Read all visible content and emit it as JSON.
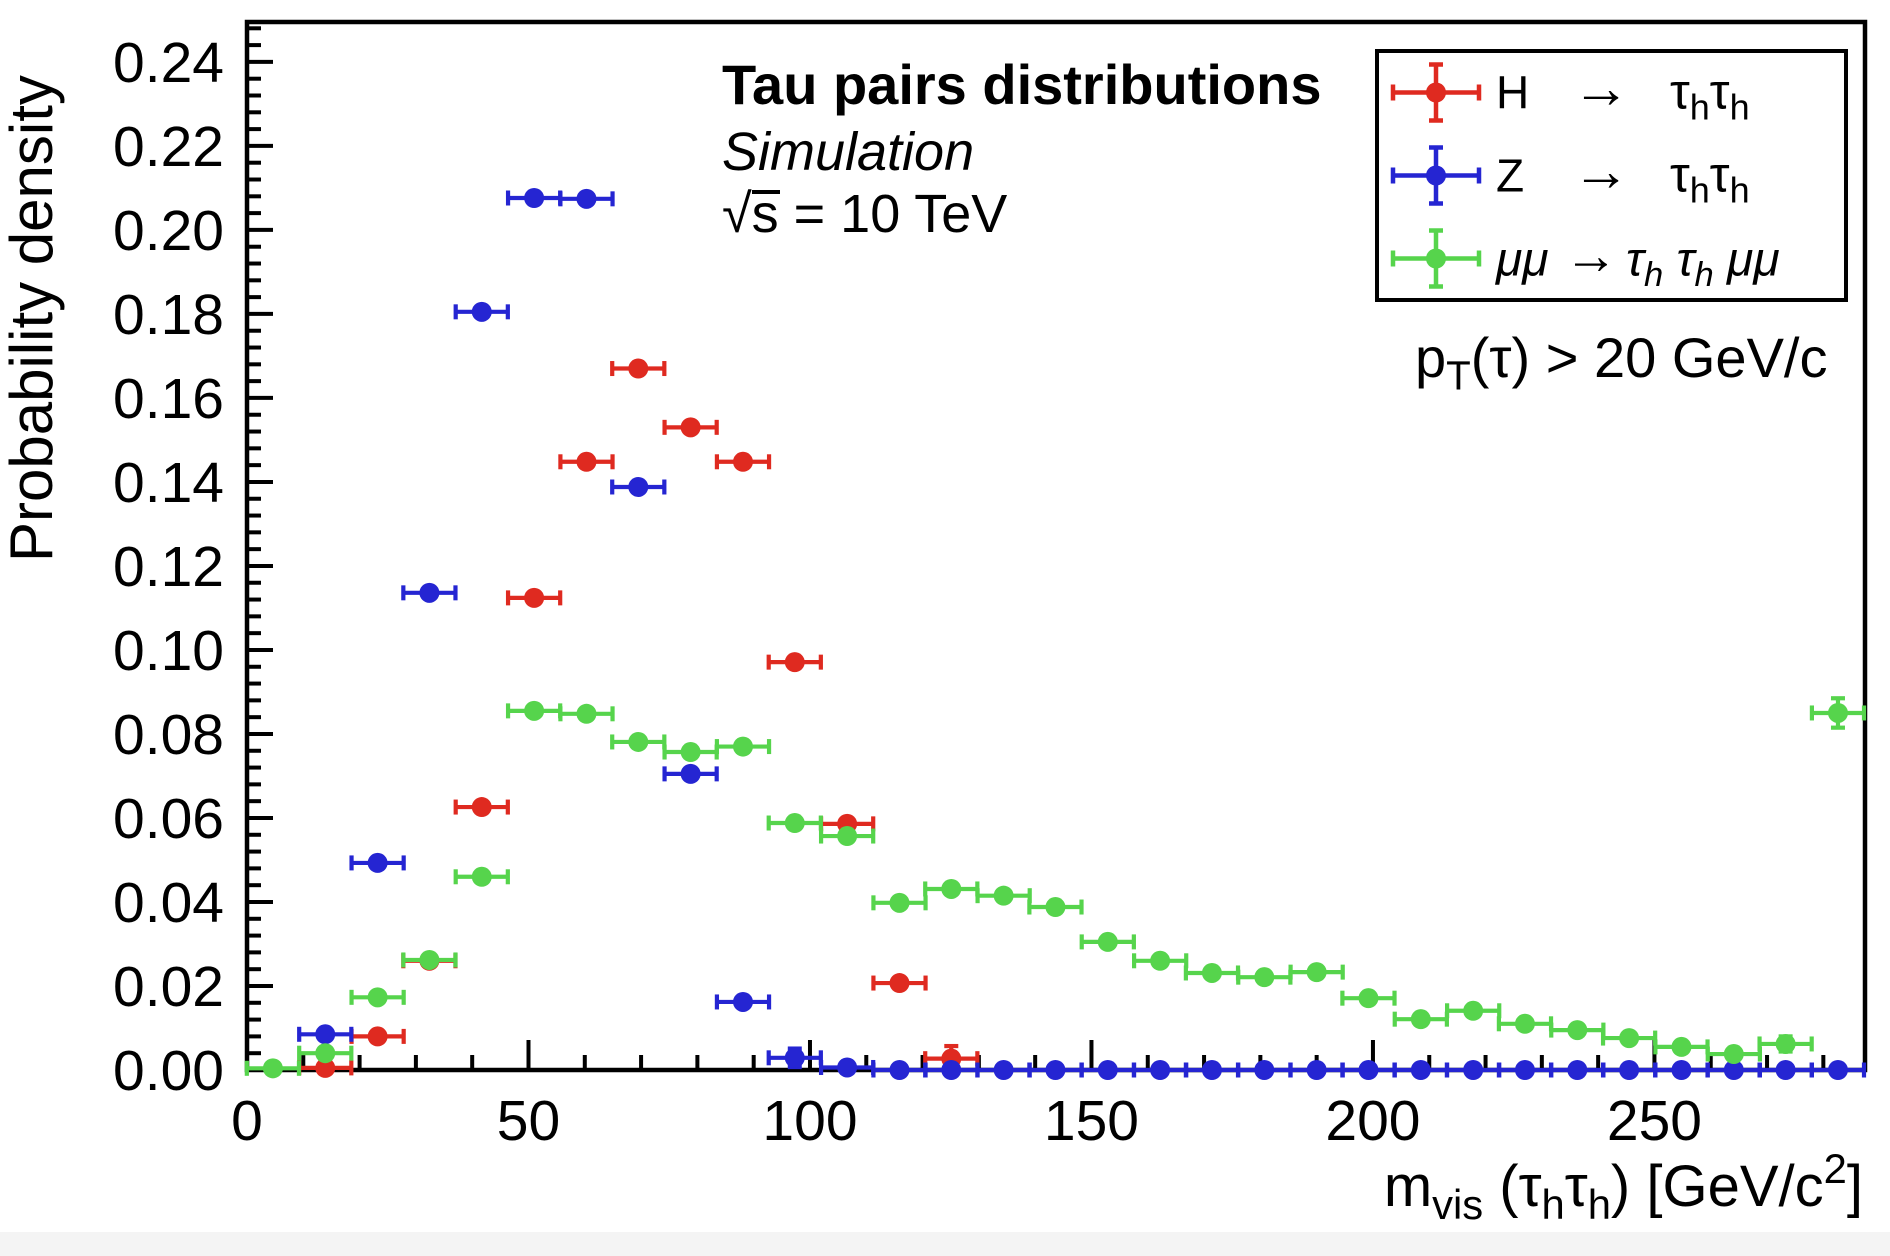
{
  "page": {
    "background": "#ffffff",
    "footer_strip_color": "#f4f4f4"
  },
  "chart_data": {
    "type": "scatter",
    "title": "Tau pairs distributions",
    "subtitle": "Simulation",
    "energy_label": "√s = 10 TeV",
    "cut_label": "p_T(τ) > 20 GeV/c",
    "xlabel": "m_vis (τ_h τ_h) [GeV/c^2]",
    "ylabel": "Probability density",
    "xlim": [
      0,
      287.4
    ],
    "ylim": [
      0,
      0.2495
    ],
    "x_major_ticks": [
      0,
      50,
      100,
      150,
      200,
      250
    ],
    "x_minor_step": 10,
    "y_major_step": 0.02,
    "y_minor_step": 0.004,
    "grid": false,
    "legend_position": "top-right",
    "bin_half_width": 4.63,
    "series": [
      {
        "name": "H → τhτh",
        "color": "#df2a20",
        "points": [
          [
            13.9,
            0.0005,
            0.0012
          ],
          [
            23.2,
            0.008
          ],
          [
            32.4,
            0.026
          ],
          [
            41.7,
            0.0626
          ],
          [
            51.0,
            0.1124
          ],
          [
            60.3,
            0.1448
          ],
          [
            69.5,
            0.167
          ],
          [
            78.8,
            0.153
          ],
          [
            88.1,
            0.1448
          ],
          [
            97.3,
            0.0971
          ],
          [
            106.6,
            0.0586
          ],
          [
            115.9,
            0.0207
          ],
          [
            125.1,
            0.0027,
            0.003
          ]
        ]
      },
      {
        "name": "Z → τhτh",
        "color": "#2525d2",
        "points": [
          [
            13.9,
            0.0085
          ],
          [
            23.2,
            0.0493
          ],
          [
            32.4,
            0.1136
          ],
          [
            41.7,
            0.1805
          ],
          [
            51.0,
            0.2076
          ],
          [
            60.3,
            0.2074
          ],
          [
            69.5,
            0.1388
          ],
          [
            78.8,
            0.0705
          ],
          [
            88.1,
            0.0162
          ],
          [
            97.3,
            0.0029,
            0.0022
          ],
          [
            106.6,
            0.0006,
            0.0012
          ],
          [
            115.9,
            0
          ],
          [
            125.1,
            0
          ],
          [
            134.4,
            0
          ],
          [
            143.6,
            0
          ],
          [
            152.9,
            0
          ],
          [
            162.2,
            0
          ],
          [
            171.4,
            0
          ],
          [
            180.7,
            0
          ],
          [
            190.0,
            0
          ],
          [
            199.2,
            0
          ],
          [
            208.5,
            0
          ],
          [
            217.8,
            0
          ],
          [
            227.0,
            0
          ],
          [
            236.3,
            0
          ],
          [
            245.5,
            0
          ],
          [
            254.8,
            0
          ],
          [
            264.1,
            0
          ],
          [
            273.3,
            0
          ],
          [
            282.6,
            0
          ]
        ]
      },
      {
        "name": "μμ → τhτhμμ",
        "color": "#56d44c",
        "points": [
          [
            4.6,
            0.0004,
            0.0012
          ],
          [
            13.9,
            0.004
          ],
          [
            23.2,
            0.0173
          ],
          [
            32.4,
            0.0262
          ],
          [
            41.7,
            0.046
          ],
          [
            51.0,
            0.0855
          ],
          [
            60.3,
            0.0848
          ],
          [
            69.5,
            0.0781
          ],
          [
            78.8,
            0.0757
          ],
          [
            88.1,
            0.077
          ],
          [
            97.3,
            0.0588
          ],
          [
            106.6,
            0.0557
          ],
          [
            115.9,
            0.0398
          ],
          [
            125.1,
            0.0431
          ],
          [
            134.4,
            0.0415
          ],
          [
            143.6,
            0.0388
          ],
          [
            152.9,
            0.0305
          ],
          [
            162.2,
            0.026
          ],
          [
            171.4,
            0.0231
          ],
          [
            180.7,
            0.0221
          ],
          [
            190.0,
            0.0233
          ],
          [
            199.2,
            0.0171
          ],
          [
            208.5,
            0.0121
          ],
          [
            217.8,
            0.0141
          ],
          [
            227.0,
            0.011
          ],
          [
            236.3,
            0.0095
          ],
          [
            245.5,
            0.0076
          ],
          [
            254.8,
            0.0055
          ],
          [
            264.1,
            0.0038
          ],
          [
            273.3,
            0.0062,
            0.0018
          ],
          [
            282.6,
            0.085,
            0.0035
          ]
        ]
      }
    ]
  },
  "title_block": {
    "title": "Tau pairs distributions",
    "subtitle": "Simulation",
    "energy_sqrt_symbol": "√",
    "energy_sqrt_arg": "s",
    "energy_rest": " = 10 TeV"
  },
  "legend": {
    "entries": [
      {
        "lhs": "H",
        "arrow": "→",
        "rhs": [
          {
            "t": "τ"
          },
          {
            "t": "h",
            "sub": true
          },
          {
            "t": "τ"
          },
          {
            "t": "h",
            "sub": true
          }
        ],
        "color": "#df2a20",
        "style": "sans"
      },
      {
        "lhs": "Z",
        "arrow": "→",
        "rhs": [
          {
            "t": "τ"
          },
          {
            "t": "h",
            "sub": true
          },
          {
            "t": "τ"
          },
          {
            "t": "h",
            "sub": true
          }
        ],
        "color": "#2525d2",
        "style": "sans"
      },
      {
        "lhs": "μμ",
        "arrow": "→",
        "rhs": [
          {
            "t": "τ"
          },
          {
            "t": "h",
            "sub": true
          },
          {
            "t": " "
          },
          {
            "t": "τ"
          },
          {
            "t": "h",
            "sub": true
          },
          {
            "t": " μμ"
          }
        ],
        "color": "#56d44c",
        "style": "math-italic"
      }
    ]
  },
  "annotations": {
    "cut_tokens": [
      {
        "t": "p"
      },
      {
        "t": "T",
        "sub": true
      },
      {
        "t": "(τ) > 20 GeV/c"
      }
    ]
  },
  "axes": {
    "x_title_tokens": [
      {
        "t": "m"
      },
      {
        "t": "vis",
        "sub": true
      },
      {
        "t": " (τ"
      },
      {
        "t": "h",
        "sub": true
      },
      {
        "t": "τ"
      },
      {
        "t": "h",
        "sub": true
      },
      {
        "t": ") [GeV/c"
      },
      {
        "t": "2",
        "sup": true
      },
      {
        "t": "]"
      }
    ],
    "y_title": "Probability density",
    "x_tick_labels": [
      "0",
      "50",
      "100",
      "150",
      "200",
      "250"
    ],
    "y_tick_labels": [
      "0.00",
      "0.02",
      "0.04",
      "0.06",
      "0.08",
      "0.10",
      "0.12",
      "0.14",
      "0.16",
      "0.18",
      "0.20",
      "0.22",
      "0.24"
    ]
  }
}
